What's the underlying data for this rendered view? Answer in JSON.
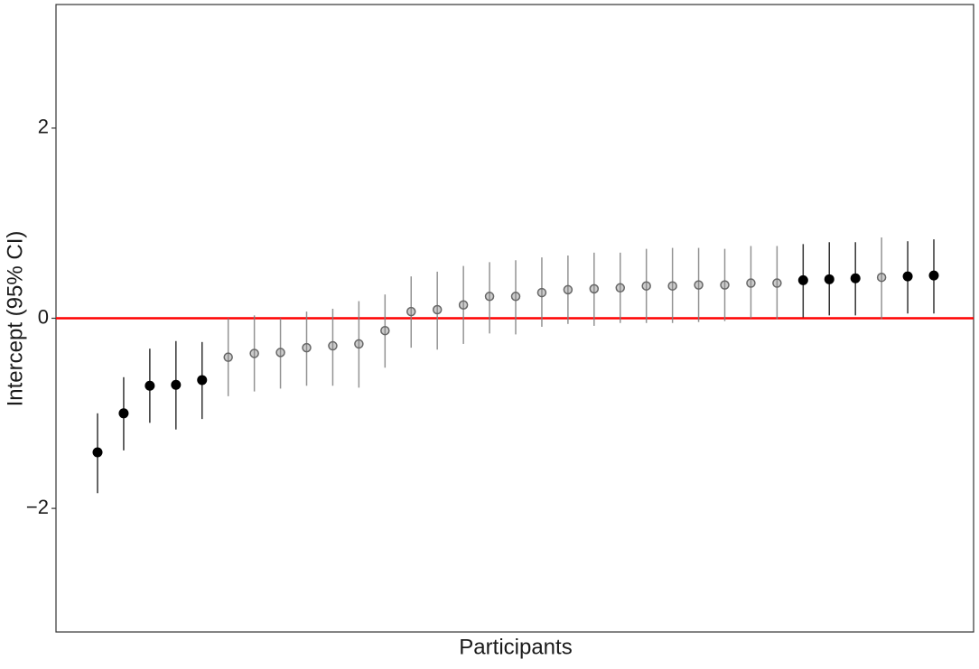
{
  "chart_data": {
    "type": "errorpoint",
    "x_label": "Participants",
    "y_label": "Intercept (95% CI)",
    "categories": [
      null,
      null,
      null,
      null,
      null,
      null,
      null,
      null,
      null,
      null,
      null,
      null,
      null,
      null,
      null,
      null,
      null,
      null,
      null,
      null,
      null,
      null,
      null,
      null,
      null,
      null,
      null,
      null,
      null,
      null,
      null,
      null,
      null
    ],
    "ylim": [
      -3.3,
      3.3
    ],
    "yticks": [
      {
        "value": -2,
        "label": "−2"
      },
      0,
      2
    ],
    "reference_line": {
      "value": 0,
      "color": "#ff0000"
    },
    "series": [
      {
        "color": "#000000",
        "values": [
          -1.41,
          -1.0,
          -0.71,
          -0.7,
          -0.65,
          null,
          null,
          null,
          null,
          null,
          null,
          null,
          null,
          null,
          null,
          null,
          null,
          null,
          null,
          null,
          null,
          null,
          null,
          null,
          null,
          null,
          null,
          0.4,
          0.41,
          0.42,
          null,
          0.44,
          0.45
        ],
        "lower": [
          -1.84,
          -1.39,
          -1.1,
          -1.17,
          -1.06,
          null,
          null,
          null,
          null,
          null,
          null,
          null,
          null,
          null,
          null,
          null,
          null,
          null,
          null,
          null,
          null,
          null,
          null,
          null,
          null,
          null,
          null,
          0.01,
          0.03,
          0.03,
          null,
          0.05,
          0.05
        ],
        "upper": [
          -1.0,
          -0.62,
          -0.32,
          -0.24,
          -0.25,
          null,
          null,
          null,
          null,
          null,
          null,
          null,
          null,
          null,
          null,
          null,
          null,
          null,
          null,
          null,
          null,
          null,
          null,
          null,
          null,
          null,
          null,
          0.78,
          0.8,
          0.8,
          null,
          0.81,
          0.83
        ]
      },
      {
        "color": "#808080",
        "values": [
          null,
          null,
          null,
          null,
          null,
          -0.41,
          -0.37,
          -0.36,
          -0.31,
          -0.29,
          -0.27,
          -0.13,
          0.07,
          0.09,
          0.14,
          0.23,
          0.23,
          0.27,
          0.3,
          0.31,
          0.32,
          0.34,
          0.34,
          0.35,
          0.35,
          0.37,
          0.37,
          null,
          null,
          null,
          0.43,
          null,
          null
        ],
        "lower": [
          null,
          null,
          null,
          null,
          null,
          -0.82,
          -0.77,
          -0.74,
          -0.71,
          -0.71,
          -0.73,
          -0.52,
          -0.31,
          -0.33,
          -0.27,
          -0.16,
          -0.17,
          -0.09,
          -0.06,
          -0.08,
          -0.05,
          -0.05,
          -0.05,
          -0.04,
          -0.03,
          0.0,
          -0.01,
          null,
          null,
          null,
          -0.01,
          null,
          null
        ],
        "upper": [
          null,
          null,
          null,
          null,
          null,
          0.0,
          0.03,
          0.0,
          0.07,
          0.1,
          0.18,
          0.25,
          0.44,
          0.49,
          0.55,
          0.59,
          0.61,
          0.64,
          0.66,
          0.69,
          0.69,
          0.73,
          0.74,
          0.74,
          0.73,
          0.76,
          0.76,
          null,
          null,
          null,
          0.85,
          null,
          null
        ]
      }
    ]
  }
}
